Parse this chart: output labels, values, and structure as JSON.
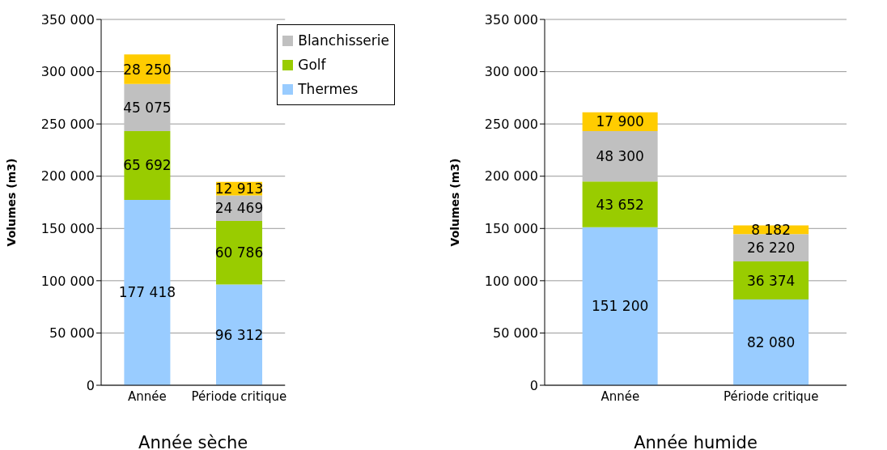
{
  "chart_data": [
    {
      "type": "bar",
      "stacked": true,
      "xlabel": "Année sèche",
      "ylabel": "Volumes (m3)",
      "categories": [
        "Année",
        "Période critique"
      ],
      "ylim": [
        0,
        350000
      ],
      "yticks": [
        {
          "value": 0,
          "label": "0"
        },
        {
          "value": 50000,
          "label": "50 000"
        },
        {
          "value": 100000,
          "label": "100 000"
        },
        {
          "value": 150000,
          "label": "150 000"
        },
        {
          "value": 200000,
          "label": "200 000"
        },
        {
          "value": 250000,
          "label": "250 000"
        },
        {
          "value": 300000,
          "label": "300 000"
        },
        {
          "value": 350000,
          "label": "350 000"
        }
      ],
      "grid": "y",
      "legend": "top right",
      "series": [
        {
          "name": "Thermes",
          "color": "#99ccff",
          "values": [
            177418,
            96312
          ],
          "value_labels": [
            "177 418",
            "96 312"
          ]
        },
        {
          "name": "Golf",
          "color": "#99cc00",
          "values": [
            65692,
            60786
          ],
          "value_labels": [
            "65 692",
            "60 786"
          ]
        },
        {
          "name": "Blanchisserie",
          "color": "#c0c0c0",
          "values": [
            45075,
            24469
          ],
          "value_labels": [
            "45 075",
            "24 469"
          ]
        },
        {
          "color": "#ffcc00",
          "values": [
            28250,
            12913
          ],
          "value_labels": [
            "28 250",
            "12 913"
          ]
        }
      ]
    },
    {
      "type": "bar",
      "stacked": true,
      "xlabel": "Année humide",
      "ylabel": "Volumes (m3)",
      "categories": [
        "Année",
        "Période critique"
      ],
      "ylim": [
        0,
        350000
      ],
      "yticks": [
        {
          "value": 0,
          "label": "0"
        },
        {
          "value": 50000,
          "label": "50 000"
        },
        {
          "value": 100000,
          "label": "100 000"
        },
        {
          "value": 150000,
          "label": "150 000"
        },
        {
          "value": 200000,
          "label": "200 000"
        },
        {
          "value": 250000,
          "label": "250 000"
        },
        {
          "value": 300000,
          "label": "300 000"
        },
        {
          "value": 350000,
          "label": "350 000"
        }
      ],
      "grid": "y",
      "series": [
        {
          "color": "#99ccff",
          "values": [
            151200,
            82080
          ],
          "value_labels": [
            "151 200",
            "82 080"
          ]
        },
        {
          "color": "#99cc00",
          "values": [
            43652,
            36374
          ],
          "value_labels": [
            "43 652",
            "36 374"
          ]
        },
        {
          "color": "#c0c0c0",
          "values": [
            48300,
            26220
          ],
          "value_labels": [
            "48 300",
            "26 220"
          ]
        },
        {
          "color": "#ffcc00",
          "values": [
            17900,
            8182
          ],
          "value_labels": [
            "17 900",
            "8 182"
          ]
        }
      ]
    }
  ]
}
